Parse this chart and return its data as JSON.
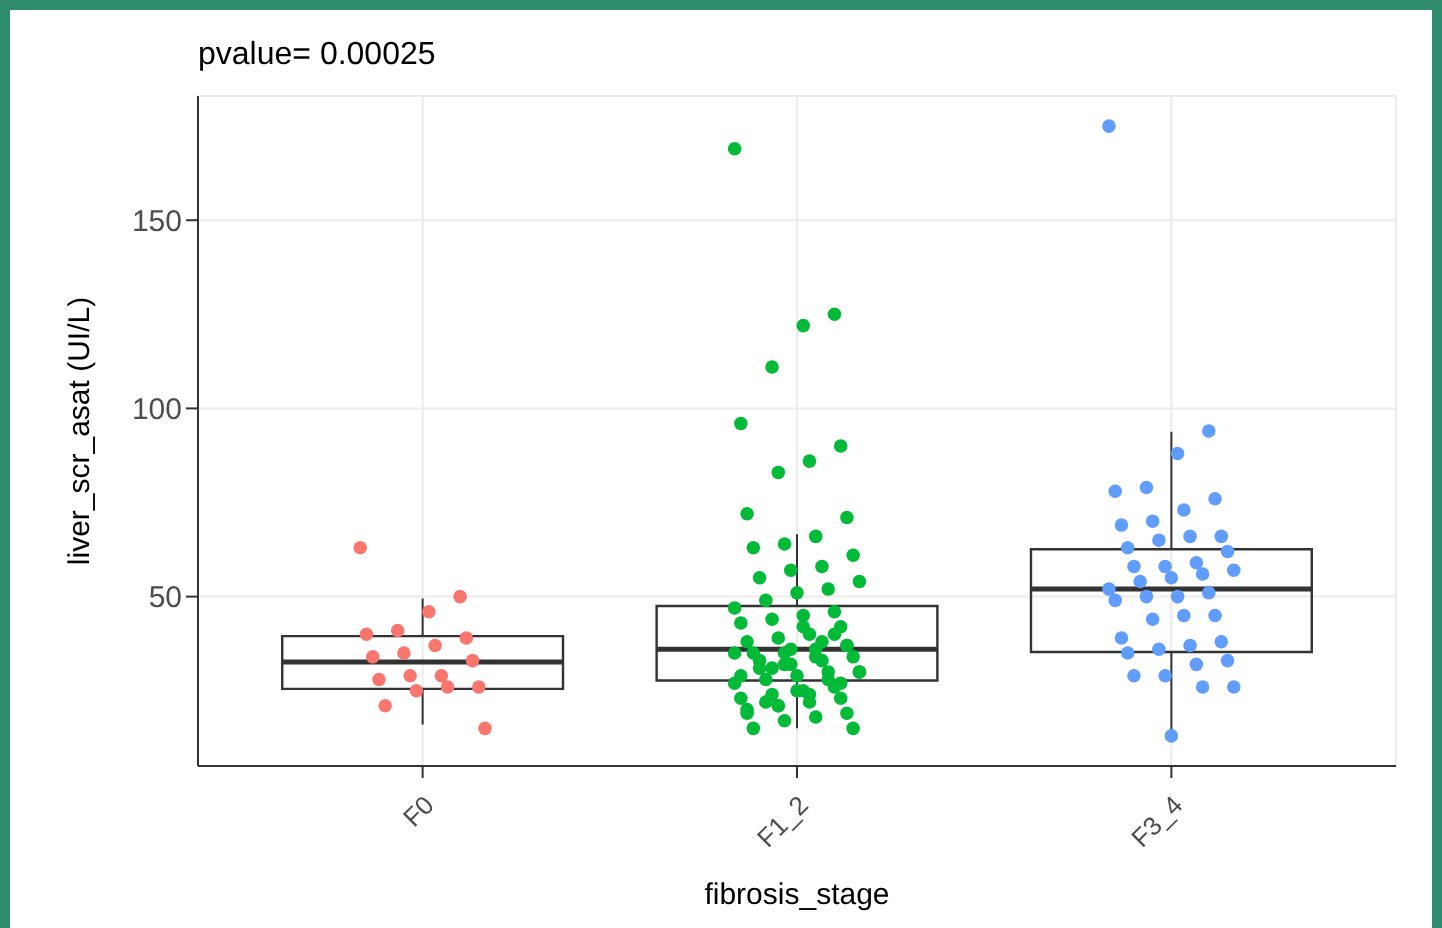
{
  "chart_data": {
    "type": "box",
    "title": "pvalue= 0.00025",
    "xlabel": "fibrosis_stage",
    "ylabel": "liver_scr_asat (UI/L)",
    "categories": [
      "F0",
      "F1_2",
      "F3_4"
    ],
    "boxes": [
      {
        "low": 16,
        "q1": 25.5,
        "median": 32.6,
        "q3": 39.5,
        "high": 49.5
      },
      {
        "low": 15,
        "q1": 27.7,
        "median": 36,
        "q3": 47.5,
        "high": 66.6
      },
      {
        "low": 12.6,
        "q1": 35.3,
        "median": 52,
        "q3": 62.6,
        "high": 93.8
      }
    ],
    "ylim": [
      5,
      183
    ],
    "yticks": [
      50,
      100,
      150
    ],
    "grid": true,
    "marker": "circle",
    "series": [
      {
        "type": "scatter",
        "color": "#f8766d",
        "x": [
          "F0",
          "F0",
          "F0",
          "F0",
          "F0",
          "F0",
          "F0",
          "F0",
          "F0",
          "F0",
          "F0",
          "F0",
          "F0",
          "F0",
          "F0",
          "F0",
          "F0",
          "F0"
        ],
        "values": [
          63,
          50,
          46,
          41,
          40,
          39,
          37,
          35,
          34,
          33,
          29,
          29,
          28,
          26,
          26,
          25,
          21,
          15
        ]
      },
      {
        "type": "scatter",
        "color": "#00ba38",
        "x": [
          "F1_2",
          "F1_2",
          "F1_2",
          "F1_2",
          "F1_2",
          "F1_2",
          "F1_2",
          "F1_2",
          "F1_2",
          "F1_2",
          "F1_2",
          "F1_2",
          "F1_2",
          "F1_2",
          "F1_2",
          "F1_2",
          "F1_2",
          "F1_2",
          "F1_2",
          "F1_2",
          "F1_2",
          "F1_2",
          "F1_2",
          "F1_2",
          "F1_2",
          "F1_2",
          "F1_2",
          "F1_2",
          "F1_2",
          "F1_2",
          "F1_2",
          "F1_2",
          "F1_2",
          "F1_2",
          "F1_2",
          "F1_2",
          "F1_2",
          "F1_2",
          "F1_2",
          "F1_2",
          "F1_2",
          "F1_2",
          "F1_2",
          "F1_2",
          "F1_2",
          "F1_2",
          "F1_2",
          "F1_2",
          "F1_2",
          "F1_2",
          "F1_2",
          "F1_2",
          "F1_2",
          "F1_2",
          "F1_2",
          "F1_2",
          "F1_2",
          "F1_2",
          "F1_2",
          "F1_2",
          "F1_2",
          "F1_2",
          "F1_2",
          "F1_2",
          "F1_2",
          "F1_2",
          "F1_2",
          "F1_2",
          "F1_2",
          "F1_2",
          "F1_2",
          "F1_2",
          "F1_2",
          "F1_2",
          "F1_2"
        ],
        "values": [
          169,
          125,
          122,
          111,
          96,
          90,
          86,
          83,
          72,
          71,
          66,
          64,
          63,
          61,
          58,
          57,
          55,
          54,
          52,
          51,
          49,
          47,
          46,
          45,
          44,
          43,
          42,
          40,
          39,
          38,
          37,
          36,
          35,
          35,
          34,
          33,
          32,
          31,
          30,
          30,
          29,
          28,
          27,
          26,
          25,
          24,
          23,
          23,
          22,
          21,
          20,
          19,
          18,
          17,
          15,
          15,
          38,
          36,
          33,
          30,
          28,
          25,
          22,
          35,
          40,
          42,
          31,
          29,
          27,
          24,
          21,
          19,
          37,
          34,
          32
        ]
      },
      {
        "type": "scatter",
        "color": "#619cff",
        "x": [
          "F3_4",
          "F3_4",
          "F3_4",
          "F3_4",
          "F3_4",
          "F3_4",
          "F3_4",
          "F3_4",
          "F3_4",
          "F3_4",
          "F3_4",
          "F3_4",
          "F3_4",
          "F3_4",
          "F3_4",
          "F3_4",
          "F3_4",
          "F3_4",
          "F3_4",
          "F3_4",
          "F3_4",
          "F3_4",
          "F3_4",
          "F3_4",
          "F3_4",
          "F3_4",
          "F3_4",
          "F3_4",
          "F3_4",
          "F3_4",
          "F3_4",
          "F3_4",
          "F3_4",
          "F3_4",
          "F3_4",
          "F3_4",
          "F3_4",
          "F3_4",
          "F3_4",
          "F3_4",
          "F3_4"
        ],
        "values": [
          175,
          94,
          88,
          79,
          78,
          76,
          73,
          70,
          69,
          66,
          66,
          65,
          63,
          62,
          59,
          58,
          58,
          57,
          56,
          55,
          54,
          52,
          51,
          50,
          50,
          49,
          45,
          45,
          44,
          39,
          38,
          37,
          36,
          35,
          33,
          32,
          29,
          29,
          26,
          26,
          13
        ]
      }
    ]
  }
}
